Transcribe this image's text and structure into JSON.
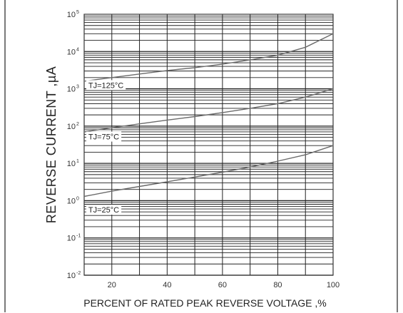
{
  "chart_data": {
    "type": "line",
    "xlabel": "PERCENT OF RATED PEAK REVERSE VOLTAGE ,%",
    "ylabel": "REVERSE CURRENT ,µA",
    "xlim": [
      10,
      100
    ],
    "ylim": [
      0.01,
      100000
    ],
    "yscale": "log",
    "grid": true,
    "x_ticks": [
      20,
      40,
      60,
      80,
      100
    ],
    "y_ticks": [
      {
        "base": "10",
        "exp": "-2",
        "value": 0.01
      },
      {
        "base": "10",
        "exp": "-1",
        "value": 0.1
      },
      {
        "base": "10",
        "exp": "0",
        "value": 1
      },
      {
        "base": "10",
        "exp": "1",
        "value": 10
      },
      {
        "base": "10",
        "exp": "2",
        "value": 100
      },
      {
        "base": "10",
        "exp": "3",
        "value": 1000
      },
      {
        "base": "10",
        "exp": "4",
        "value": 10000
      },
      {
        "base": "10",
        "exp": "5",
        "value": 100000
      }
    ],
    "series": [
      {
        "name": "TJ=125°C",
        "color": "#6b6b6b",
        "x": [
          10,
          20,
          30,
          40,
          50,
          60,
          70,
          80,
          90,
          100
        ],
        "y": [
          1600,
          2000,
          2500,
          3100,
          3700,
          4600,
          6000,
          8000,
          13000,
          30000
        ]
      },
      {
        "name": "TJ=75°C",
        "color": "#6b6b6b",
        "x": [
          10,
          20,
          30,
          40,
          50,
          60,
          70,
          80,
          90,
          100
        ],
        "y": [
          70,
          90,
          115,
          145,
          180,
          230,
          300,
          400,
          600,
          1000
        ]
      },
      {
        "name": "TJ=25°C",
        "color": "#6b6b6b",
        "x": [
          10,
          20,
          30,
          40,
          50,
          60,
          70,
          80,
          90,
          100
        ],
        "y": [
          1.3,
          1.8,
          2.4,
          3.2,
          4.3,
          5.8,
          8.0,
          11.5,
          17,
          30
        ]
      }
    ],
    "annotations": [
      {
        "label": "TJ=125°C",
        "x": 11,
        "y": 1200
      },
      {
        "label": "TJ=75°C",
        "x": 11,
        "y": 50
      },
      {
        "label": "TJ=25°C",
        "x": 11,
        "y": 0.55
      }
    ]
  }
}
